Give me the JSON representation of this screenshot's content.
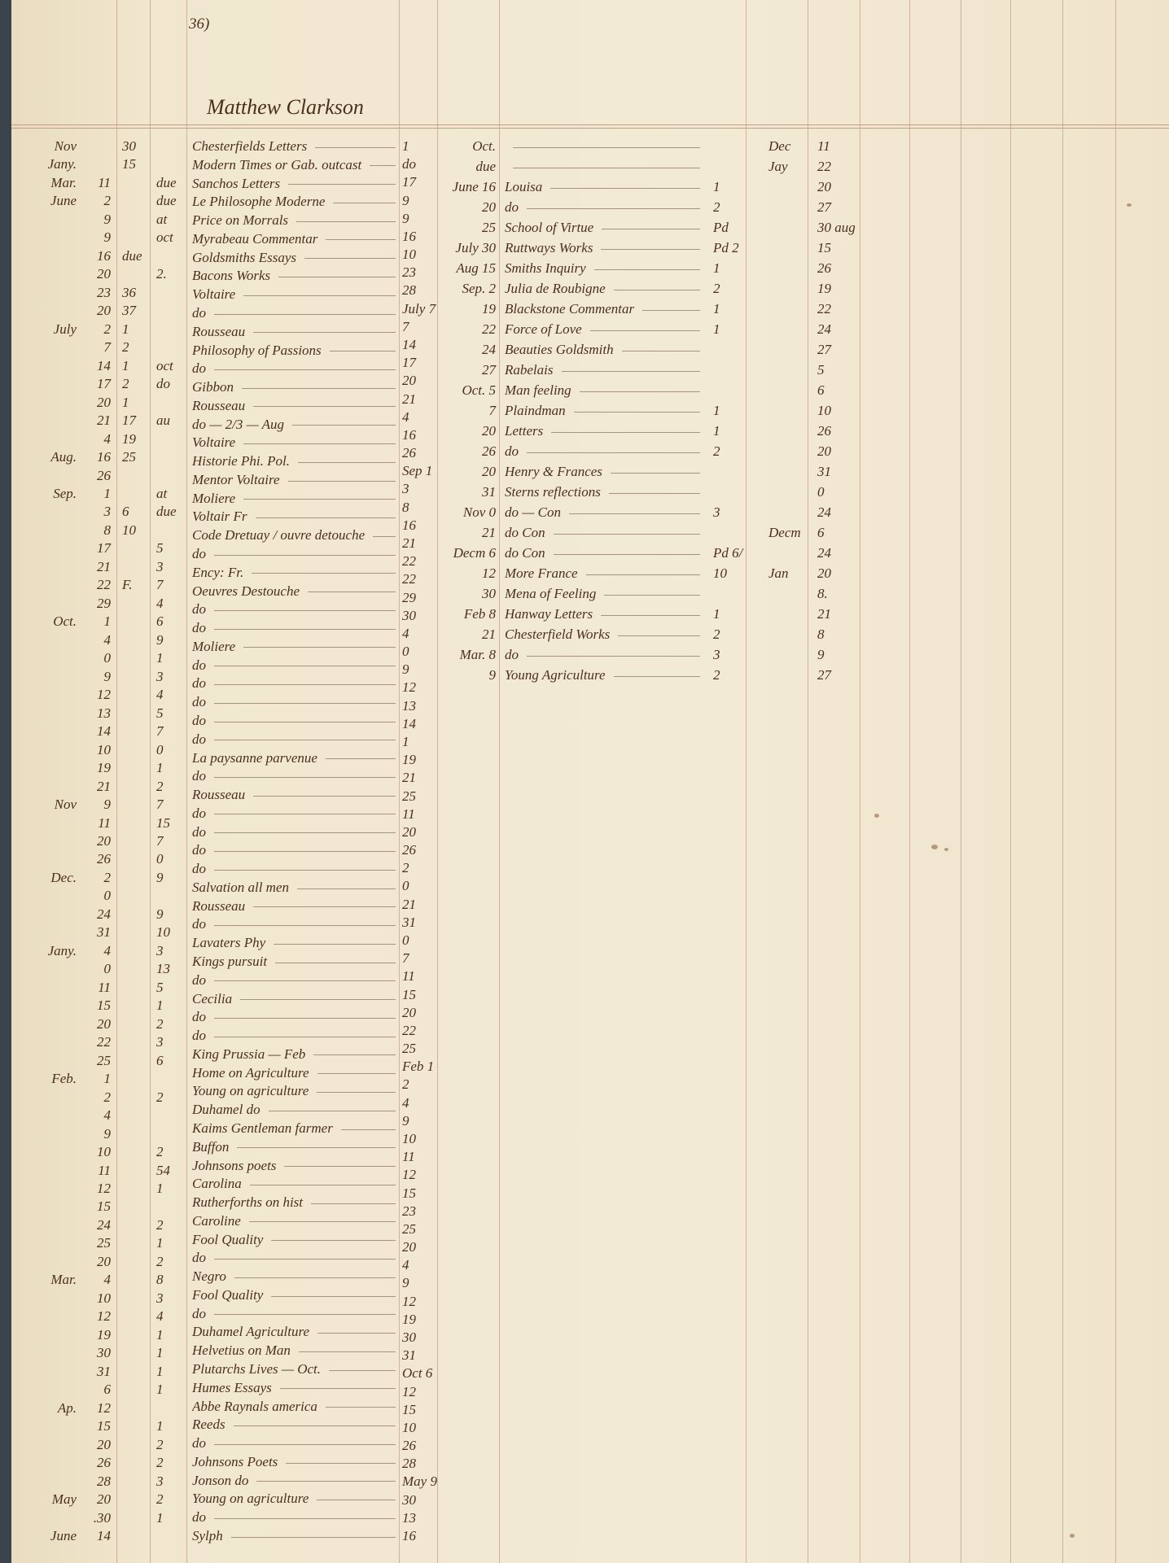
{
  "page_number": "36)",
  "account_name": "Matthew Clarkson",
  "colors": {
    "ink": "#4b2f1d",
    "paper": "#f1e7cf",
    "ruling": "#c9a48f"
  },
  "left_ledger": {
    "date_rows": [
      [
        "Nov",
        "",
        "30",
        ""
      ],
      [
        "Jany.",
        "",
        "15",
        ""
      ],
      [
        "Mar.",
        "11",
        "",
        "due"
      ],
      [
        "June",
        "2",
        "",
        "due"
      ],
      [
        "",
        "9",
        "",
        "at"
      ],
      [
        "",
        "9",
        "",
        "oct"
      ],
      [
        "",
        "16",
        "due",
        ""
      ],
      [
        "",
        "20",
        "",
        "2."
      ],
      [
        "",
        "23",
        "36",
        ""
      ],
      [
        "",
        "20",
        "37",
        ""
      ],
      [
        "July",
        "2",
        "1",
        ""
      ],
      [
        "",
        "7",
        "2",
        ""
      ],
      [
        "",
        "14",
        "1",
        "oct"
      ],
      [
        "",
        "17",
        "2",
        "do"
      ],
      [
        "",
        "20",
        "1",
        ""
      ],
      [
        "",
        "21",
        "17",
        "au"
      ],
      [
        "",
        "4",
        "19",
        ""
      ],
      [
        "Aug.",
        "16",
        "25",
        ""
      ],
      [
        "",
        "26",
        "",
        ""
      ],
      [
        "Sep.",
        "1",
        "",
        "at"
      ],
      [
        "",
        "3",
        "6",
        "due"
      ],
      [
        "",
        "8",
        "10",
        ""
      ],
      [
        "",
        "17",
        "",
        "5"
      ],
      [
        "",
        "21",
        "",
        "3"
      ],
      [
        "",
        "22",
        "F.",
        "7"
      ],
      [
        "",
        "29",
        "",
        "4"
      ],
      [
        "Oct.",
        "1",
        "",
        "6"
      ],
      [
        "",
        "4",
        "",
        "9"
      ],
      [
        "",
        "0",
        "",
        "1"
      ],
      [
        "",
        "9",
        "",
        "3"
      ],
      [
        "",
        "12",
        "",
        "4"
      ],
      [
        "",
        "13",
        "",
        "5"
      ],
      [
        "",
        "14",
        "",
        "7"
      ],
      [
        "",
        "10",
        "",
        "0"
      ],
      [
        "",
        "19",
        "",
        "1"
      ],
      [
        "",
        "21",
        "",
        "2"
      ],
      [
        "Nov",
        "9",
        "",
        "7"
      ],
      [
        "",
        "11",
        "",
        "15"
      ],
      [
        "",
        "20",
        "",
        "7"
      ],
      [
        "",
        "26",
        "",
        "0"
      ],
      [
        "Dec.",
        "2",
        "",
        "9"
      ],
      [
        "",
        "0",
        "",
        ""
      ],
      [
        "",
        "24",
        "",
        "9"
      ],
      [
        "",
        "31",
        "",
        "10"
      ],
      [
        "Jany.",
        "4",
        "",
        "3"
      ],
      [
        "",
        "0",
        "",
        "13"
      ],
      [
        "",
        "11",
        "",
        "5"
      ],
      [
        "",
        "15",
        "",
        "1"
      ],
      [
        "",
        "20",
        "",
        "2"
      ],
      [
        "",
        "22",
        "",
        "3"
      ],
      [
        "",
        "25",
        "",
        "6"
      ],
      [
        "Feb.",
        "1",
        "",
        ""
      ],
      [
        "",
        "2",
        "",
        "2"
      ],
      [
        "",
        "4",
        "",
        ""
      ],
      [
        "",
        "9",
        "",
        ""
      ],
      [
        "",
        "10",
        "",
        "2"
      ],
      [
        "",
        "11",
        "",
        "54"
      ],
      [
        "",
        "12",
        "",
        "1"
      ],
      [
        "",
        "15",
        "",
        ""
      ],
      [
        "",
        "24",
        "",
        "2"
      ],
      [
        "",
        "25",
        "",
        "1"
      ],
      [
        "",
        "20",
        "",
        "2"
      ],
      [
        "Mar.",
        "4",
        "",
        "8"
      ],
      [
        "",
        "10",
        "",
        "3"
      ],
      [
        "",
        "12",
        "",
        "4"
      ],
      [
        "",
        "19",
        "",
        "1"
      ],
      [
        "",
        "30",
        "",
        "1"
      ],
      [
        "",
        "31",
        "",
        "1"
      ],
      [
        "",
        "6",
        "",
        "1"
      ],
      [
        "Ap.",
        "12",
        "",
        ""
      ],
      [
        "",
        "15",
        "",
        "1"
      ],
      [
        "",
        "20",
        "",
        "2"
      ],
      [
        "",
        "26",
        "",
        "2"
      ],
      [
        "",
        "28",
        "",
        "3"
      ],
      [
        "May",
        "20",
        "",
        "2"
      ],
      [
        "",
        ".30",
        "",
        "1"
      ],
      [
        "June",
        "14",
        "",
        ""
      ]
    ],
    "titles": [
      "Chesterfields Letters",
      "Modern Times or Gab. outcast",
      "Sanchos Letters",
      "Le Philosophe Moderne",
      "Price on Morrals",
      "Myrabeau Commentar",
      "Goldsmiths Essays",
      "Bacons Works",
      "Voltaire",
      "do",
      "Rousseau",
      "Philosophy of Passions",
      "do",
      "Gibbon",
      "Rousseau",
      "do — 2/3 — Aug",
      "Voltaire",
      "Historie Phi. Pol.",
      "Mentor Voltaire",
      "Moliere",
      "Voltair Fr",
      "Code Dretuay / ouvre detouche",
      "do",
      "Ency: Fr.",
      "Oeuvres Destouche",
      "do",
      "do",
      "Moliere",
      "do",
      "do",
      "do",
      "do",
      "do",
      "La paysanne parvenue",
      "do",
      "Rousseau",
      "do",
      "do",
      "do",
      "do",
      "Salvation all men",
      "Rousseau",
      "do",
      "Lavaters Phy",
      "Kings pursuit",
      "do",
      "Cecilia",
      "do",
      "do",
      "King Prussia — Feb",
      "Home on Agriculture",
      "Young on agriculture",
      "Duhamel do",
      "Kaims Gentleman farmer",
      "Buffon",
      "Johnsons poets",
      "Carolina",
      "Rutherforths on hist",
      "Caroline",
      "Fool Quality",
      "do",
      "Negro",
      "Fool Quality",
      "do",
      "Duhamel Agriculture",
      "Helvetius on Man",
      "Plutarchs Lives — Oct.",
      "Humes Essays",
      "Abbe Raynals america",
      "Reeds",
      "do",
      "Johnsons Poets",
      "Jonson do",
      "Young on agriculture",
      "do",
      "Sylph"
    ],
    "returns": [
      "1",
      "do",
      "17",
      "9",
      "9",
      "16",
      "10",
      "23",
      "28",
      "July 7",
      "7",
      "14",
      "17",
      "20",
      "21",
      "4",
      "16",
      "26",
      "Sep 1",
      "3",
      "8",
      "16",
      "21",
      "22",
      "22",
      "29",
      "30",
      "4",
      "0",
      "9",
      "12",
      "13",
      "14",
      "1",
      "19",
      "21",
      "25",
      "11",
      "20",
      "26",
      "2",
      "0",
      "21",
      "31",
      "0",
      "7",
      "11",
      "15",
      "20",
      "22",
      "25",
      "Feb 1",
      "2",
      "4",
      "9",
      "10",
      "11",
      "12",
      "15",
      "23",
      "25",
      "20",
      "4",
      "9",
      "12",
      "19",
      "30",
      "31",
      "Oct 6",
      "12",
      "15",
      "10",
      "26",
      "28",
      "May 9",
      "30",
      "13",
      "16"
    ]
  },
  "right_ledger": {
    "rows": [
      [
        "Oct.",
        "",
        "",
        "Dec",
        "11"
      ],
      [
        "due",
        "",
        "",
        "Jay",
        "22"
      ],
      [
        "June 16",
        "Louisa",
        "1",
        "",
        "20"
      ],
      [
        "20",
        "do",
        "2",
        "",
        "27"
      ],
      [
        "25",
        "School of Virtue",
        "Pd",
        "",
        "30 aug"
      ],
      [
        "July 30",
        "Ruttways Works",
        "Pd 2",
        "",
        "15"
      ],
      [
        "Aug 15",
        "Smiths Inquiry",
        "1",
        "",
        "26"
      ],
      [
        "Sep. 2",
        "Julia de Roubigne",
        "2",
        "",
        "19"
      ],
      [
        "19",
        "Blackstone Commentar",
        "1",
        "",
        "22"
      ],
      [
        "22",
        "Force of Love",
        "1",
        "",
        "24"
      ],
      [
        "24",
        "Beauties Goldsmith",
        "",
        "",
        "27"
      ],
      [
        "27",
        "Rabelais",
        "",
        "",
        "5"
      ],
      [
        "Oct. 5",
        "Man feeling",
        "",
        "",
        "6"
      ],
      [
        "7",
        "Plaindman",
        "1",
        "",
        "10"
      ],
      [
        "20",
        "Letters",
        "1",
        "",
        "26"
      ],
      [
        "26",
        "do",
        "2",
        "",
        "20"
      ],
      [
        "20",
        "Henry & Frances",
        "",
        "",
        "31"
      ],
      [
        "31",
        "Sterns reflections",
        "",
        "",
        "0"
      ],
      [
        "Nov 0",
        "do — Con",
        "3",
        "",
        "24"
      ],
      [
        "21",
        "do Con",
        "",
        "Decm",
        "6"
      ],
      [
        "Decm 6",
        "do Con",
        "Pd 6/",
        "",
        "24"
      ],
      [
        "12",
        "More France",
        "10",
        "Jan",
        "20"
      ],
      [
        "30",
        "Mena of Feeling",
        "",
        "",
        "8."
      ],
      [
        "Feb 8",
        "Hanway Letters",
        "1",
        "",
        "21"
      ],
      [
        "21",
        "Chesterfield Works",
        "2",
        "",
        "8"
      ],
      [
        "Mar. 8",
        "do",
        "3",
        "",
        "9"
      ],
      [
        "9",
        "Young Agriculture",
        "2",
        "",
        "27"
      ]
    ]
  }
}
